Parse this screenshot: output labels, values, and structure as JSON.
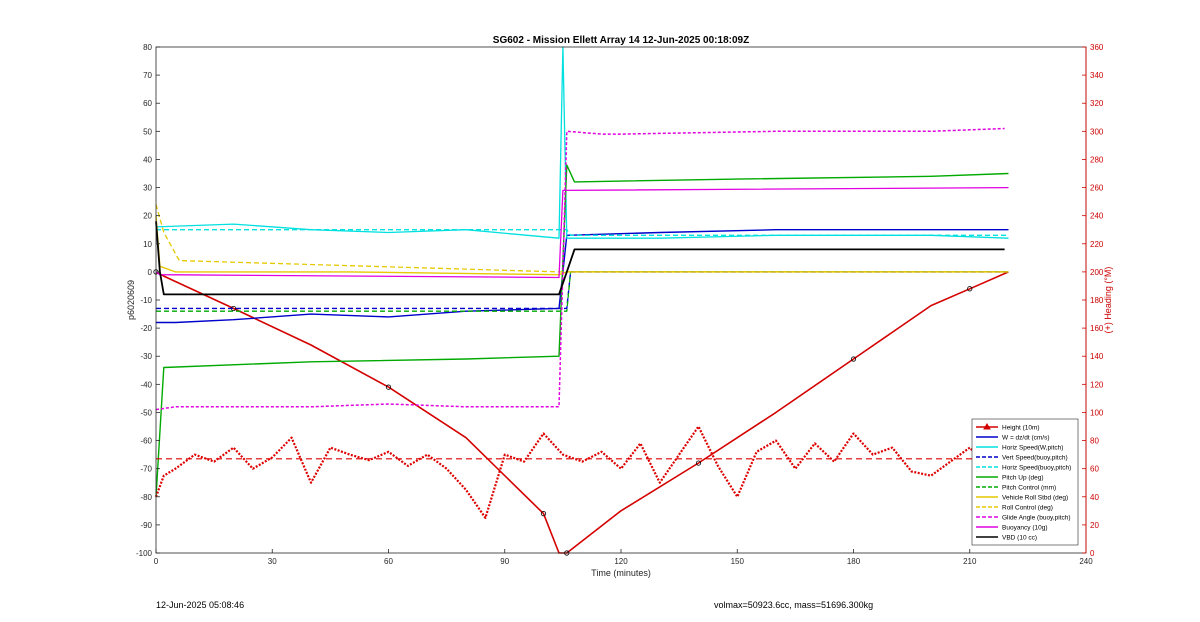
{
  "chart_data": {
    "type": "line",
    "title": "SG602 - Mission Ellett Array 14 12-Jun-2025 00:18:09Z",
    "xlabel": "Time (minutes)",
    "ylabel_left": "p6020609",
    "ylabel_right": "(+) Heading (°M)",
    "xlim": [
      0,
      240
    ],
    "ylim_left": [
      -100,
      80
    ],
    "ylim_right": [
      0,
      360
    ],
    "xticks": [
      0,
      30,
      60,
      90,
      120,
      150,
      180,
      210,
      240
    ],
    "yticks_left": [
      -100,
      -90,
      -80,
      -70,
      -60,
      -50,
      -40,
      -30,
      -20,
      -10,
      0,
      10,
      20,
      30,
      40,
      50,
      60,
      70,
      80
    ],
    "yticks_right": [
      0,
      20,
      40,
      60,
      80,
      100,
      120,
      140,
      160,
      180,
      200,
      220,
      240,
      260,
      280,
      300,
      320,
      340,
      360
    ],
    "grid": false,
    "legend_position": "bottom-right",
    "colors": {
      "height": "#d40000",
      "w": "#0000cc",
      "hspeed": "#00e0e0",
      "pitch": "#00aa00",
      "roll": "#e6c800",
      "glide": "#e000e0",
      "vbd": "#000000",
      "heading": "#dd0000",
      "right_axis": "#cc0000"
    },
    "legend": [
      {
        "label": "Height (10m)",
        "color": "#d40000",
        "style": "solid-marker"
      },
      {
        "label": "W = dz/dt (cm/s)",
        "color": "#0000cc",
        "style": "solid"
      },
      {
        "label": "Horiz Speed(W,pitch)",
        "color": "#00e0e0",
        "style": "solid"
      },
      {
        "label": "Vert Speed(buoy,pitch)",
        "color": "#0000cc",
        "style": "dashed"
      },
      {
        "label": "Horiz Speed(buoy,pitch)",
        "color": "#00e0e0",
        "style": "dashed"
      },
      {
        "label": "Pitch Up (deg)",
        "color": "#00aa00",
        "style": "solid"
      },
      {
        "label": "Pitch Control (mm)",
        "color": "#00aa00",
        "style": "dashed"
      },
      {
        "label": "Vehicle Roll Stbd (deg)",
        "color": "#e6c800",
        "style": "solid"
      },
      {
        "label": "Roll Control (deg)",
        "color": "#e6c800",
        "style": "dashed"
      },
      {
        "label": "Glide Angle (buoy,pitch)",
        "color": "#e000e0",
        "style": "dashed"
      },
      {
        "label": "Buoyancy (10g)",
        "color": "#e000e0",
        "style": "solid"
      },
      {
        "label": "VBD (10 cc)",
        "color": "#000000",
        "style": "solid"
      }
    ],
    "series": [
      {
        "name": "Height (10m)",
        "key": "height",
        "x": [
          0,
          2,
          20,
          40,
          60,
          80,
          100,
          104,
          106,
          120,
          140,
          160,
          180,
          200,
          210,
          220
        ],
        "y": [
          0,
          -1.5,
          -13,
          -26,
          -41,
          -59,
          -86,
          -100,
          -100,
          -85,
          -68,
          -50,
          -31,
          -12,
          -6,
          0
        ]
      },
      {
        "name": "W = dz/dt (cm/s)",
        "key": "w",
        "x": [
          0,
          5,
          20,
          40,
          60,
          80,
          104,
          106,
          130,
          160,
          200,
          220
        ],
        "y": [
          -18,
          -18,
          -17,
          -15,
          -16,
          -14,
          -13,
          13,
          14,
          15,
          15,
          15
        ]
      },
      {
        "name": "Horiz Speed(W,pitch)",
        "key": "hspeed",
        "x": [
          0,
          20,
          40,
          60,
          80,
          104,
          105,
          106,
          108,
          130,
          160,
          200,
          220
        ],
        "y": [
          16,
          17,
          15,
          14,
          15,
          12,
          80,
          12,
          12,
          12,
          13,
          13,
          12
        ]
      },
      {
        "name": "Vert Speed(buoy,pitch)",
        "key": "vspeed_buoy",
        "x": [
          0,
          106,
          107,
          220
        ],
        "y": [
          -13,
          -13,
          0,
          0
        ]
      },
      {
        "name": "Horiz Speed(buoy,pitch)",
        "key": "hspeed_buoy",
        "x": [
          0,
          106,
          107,
          220
        ],
        "y": [
          15,
          15,
          13,
          13
        ]
      },
      {
        "name": "Pitch Up (deg)",
        "key": "pitch",
        "x": [
          0,
          2,
          40,
          80,
          104,
          106,
          108,
          150,
          200,
          220
        ],
        "y": [
          -80,
          -34,
          -32,
          -31,
          -30,
          38,
          32,
          33,
          34,
          35
        ]
      },
      {
        "name": "Pitch Control (mm)",
        "key": "pitch_ctrl",
        "x": [
          0,
          106,
          107,
          220
        ],
        "y": [
          -14,
          -14,
          0,
          0
        ]
      },
      {
        "name": "Vehicle Roll Stbd (deg)",
        "key": "roll",
        "x": [
          0,
          1,
          5,
          50,
          104,
          106,
          220
        ],
        "y": [
          20,
          2,
          0,
          0,
          -1,
          0,
          0
        ]
      },
      {
        "name": "Roll Control (deg)",
        "key": "roll_ctrl",
        "x": [
          0,
          2,
          6,
          104,
          106,
          220
        ],
        "y": [
          24,
          14,
          4,
          0,
          0,
          0
        ]
      },
      {
        "name": "Glide Angle (buoy,pitch)",
        "key": "glide",
        "x": [
          0,
          5,
          40,
          60,
          80,
          104,
          106,
          115,
          120,
          160,
          200,
          219
        ],
        "y": [
          -49,
          -48,
          -48,
          -47,
          -48,
          -48,
          50,
          49,
          49,
          50,
          50,
          51
        ]
      },
      {
        "name": "Buoyancy (10g)",
        "key": "buoyancy",
        "x": [
          0,
          1,
          104,
          105,
          220
        ],
        "y": [
          0,
          -1,
          -2,
          29,
          30
        ]
      },
      {
        "name": "VBD (10 cc)",
        "key": "vbd",
        "x": [
          0,
          1,
          2,
          104,
          106,
          108,
          150,
          219
        ],
        "y": [
          18,
          0,
          -8,
          -8,
          0,
          8,
          8,
          8
        ]
      },
      {
        "name": "Heading",
        "key": "heading",
        "axis": "right",
        "x": [
          0,
          2,
          5,
          10,
          15,
          20,
          25,
          30,
          35,
          40,
          45,
          50,
          55,
          60,
          65,
          70,
          75,
          80,
          85,
          90,
          95,
          100,
          105,
          110,
          115,
          120,
          125,
          130,
          135,
          140,
          145,
          150,
          155,
          160,
          165,
          170,
          175,
          180,
          185,
          190,
          195,
          200,
          205,
          210,
          215,
          220
        ],
        "y": [
          40,
          55,
          60,
          70,
          65,
          75,
          60,
          68,
          82,
          50,
          75,
          70,
          66,
          72,
          62,
          70,
          60,
          45,
          25,
          70,
          65,
          85,
          70,
          65,
          72,
          60,
          78,
          50,
          70,
          90,
          62,
          40,
          72,
          80,
          60,
          78,
          65,
          85,
          70,
          75,
          58,
          55,
          65,
          75,
          60,
          70
        ]
      },
      {
        "name": "Heading reference",
        "key": "heading_ref",
        "axis": "right",
        "x": [
          0,
          220
        ],
        "y": [
          67,
          67
        ]
      }
    ]
  },
  "footer": {
    "left": "12-Jun-2025 05:08:46",
    "right": "volmax=50923.6cc, mass=51696.300kg"
  }
}
